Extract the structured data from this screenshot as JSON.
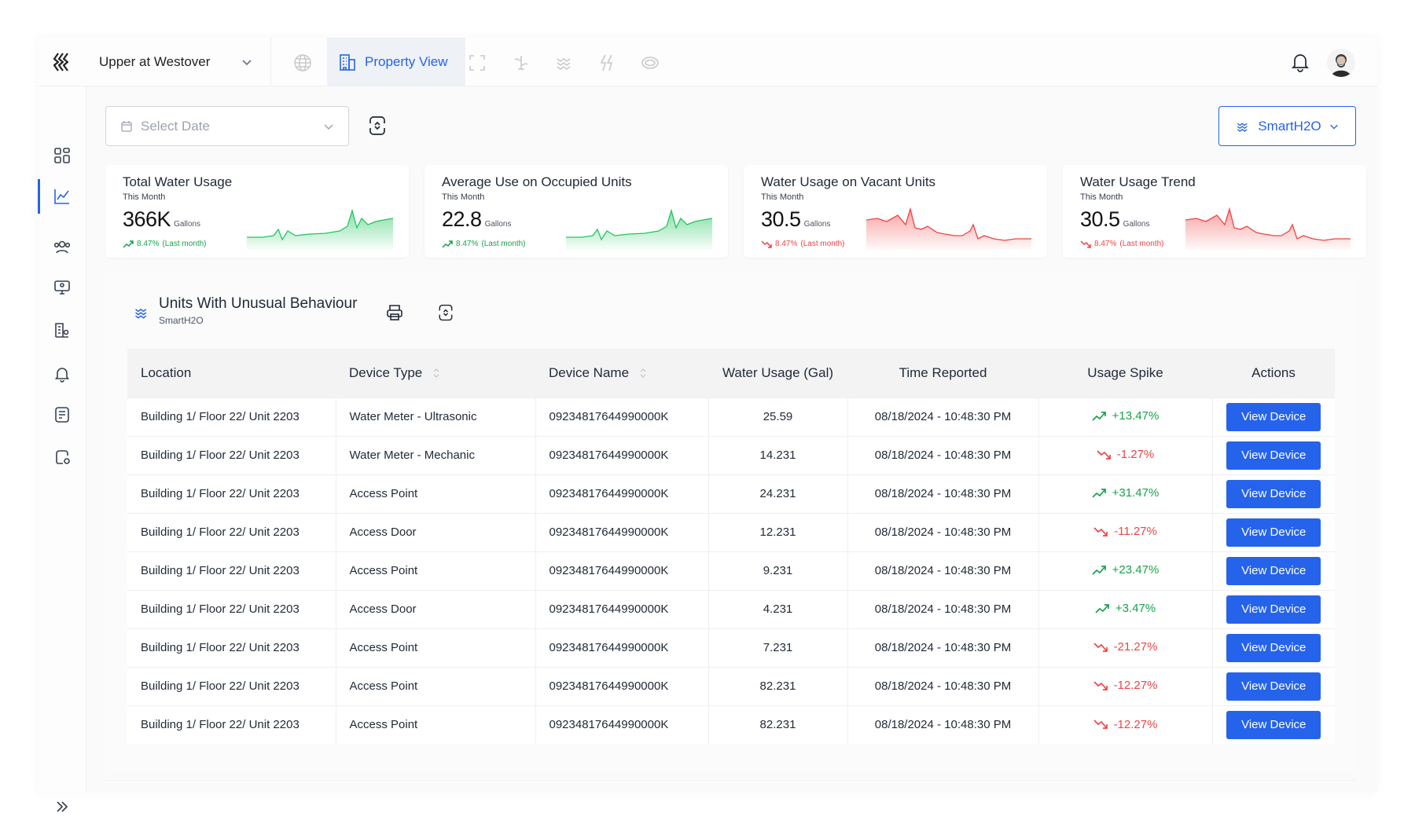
{
  "header": {
    "property": "Upper at Westover",
    "active_nav": "Property View"
  },
  "filters": {
    "date_placeholder": "Select Date",
    "brand": "SmartH2O"
  },
  "kpis": [
    {
      "title": "Total Water Usage",
      "period": "This Month",
      "value": "366K",
      "unit": "Gallons",
      "delta": "8.47%",
      "delta_note": "(Last month)",
      "trend": "up"
    },
    {
      "title": "Average Use on Occupied Units",
      "period": "This Month",
      "value": "22.8",
      "unit": "Gallons",
      "delta": "8.47%",
      "delta_note": "(Last month)",
      "trend": "up"
    },
    {
      "title": "Water Usage on Vacant Units",
      "period": "This Month",
      "value": "30.5",
      "unit": "Gallons",
      "delta": "8.47%",
      "delta_note": "(Last month)",
      "trend": "down"
    },
    {
      "title": "Water Usage Trend",
      "period": "This Month",
      "value": "30.5",
      "unit": "Gallons",
      "delta": "8.47%",
      "delta_note": "(Last month)",
      "trend": "down"
    }
  ],
  "panel": {
    "title": "Units With Unusual Behaviour",
    "subtitle": "SmartH2O"
  },
  "table": {
    "columns": [
      "Location",
      "Device Type",
      "Device Name",
      "Water Usage (Gal)",
      "Time Reported",
      "Usage Spike",
      "Actions"
    ],
    "action_label": "View Device",
    "rows": [
      {
        "location": "Building 1/ Floor 22/ Unit 2203",
        "type": "Water Meter - Ultrasonic",
        "name": "09234817644990000K",
        "usage": "25.59",
        "time": "08/18/2024 - 10:48:30 PM",
        "spike": "+13.47%",
        "dir": "up"
      },
      {
        "location": "Building 1/ Floor 22/ Unit 2203",
        "type": "Water Meter - Mechanic",
        "name": "09234817644990000K",
        "usage": "14.231",
        "time": "08/18/2024 - 10:48:30 PM",
        "spike": "-1.27%",
        "dir": "down"
      },
      {
        "location": "Building 1/ Floor 22/ Unit 2203",
        "type": "Access Point",
        "name": "09234817644990000K",
        "usage": "24.231",
        "time": "08/18/2024 - 10:48:30 PM",
        "spike": "+31.47%",
        "dir": "up"
      },
      {
        "location": "Building 1/ Floor 22/ Unit 2203",
        "type": "Access Door",
        "name": "09234817644990000K",
        "usage": "12.231",
        "time": "08/18/2024 - 10:48:30 PM",
        "spike": "-11.27%",
        "dir": "down"
      },
      {
        "location": "Building 1/ Floor 22/ Unit 2203",
        "type": "Access Point",
        "name": "09234817644990000K",
        "usage": "9.231",
        "time": "08/18/2024 - 10:48:30 PM",
        "spike": "+23.47%",
        "dir": "up"
      },
      {
        "location": "Building 1/ Floor 22/ Unit 2203",
        "type": "Access Door",
        "name": "09234817644990000K",
        "usage": "4.231",
        "time": "08/18/2024 - 10:48:30 PM",
        "spike": "+3.47%",
        "dir": "up"
      },
      {
        "location": "Building 1/ Floor 22/ Unit 2203",
        "type": "Access Point",
        "name": "09234817644990000K",
        "usage": "7.231",
        "time": "08/18/2024 - 10:48:30 PM",
        "spike": "-21.27%",
        "dir": "down"
      },
      {
        "location": "Building 1/ Floor 22/ Unit 2203",
        "type": "Access Point",
        "name": "09234817644990000K",
        "usage": "82.231",
        "time": "08/18/2024 - 10:48:30 PM",
        "spike": "-12.27%",
        "dir": "down"
      },
      {
        "location": "Building 1/ Floor 22/ Unit 2203",
        "type": "Access Point",
        "name": "09234817644990000K",
        "usage": "82.231",
        "time": "08/18/2024 - 10:48:30 PM",
        "spike": "-12.27%",
        "dir": "down"
      }
    ]
  },
  "colors": {
    "accent": "#2563eb",
    "up": "#16a34a",
    "down": "#ef4444"
  }
}
